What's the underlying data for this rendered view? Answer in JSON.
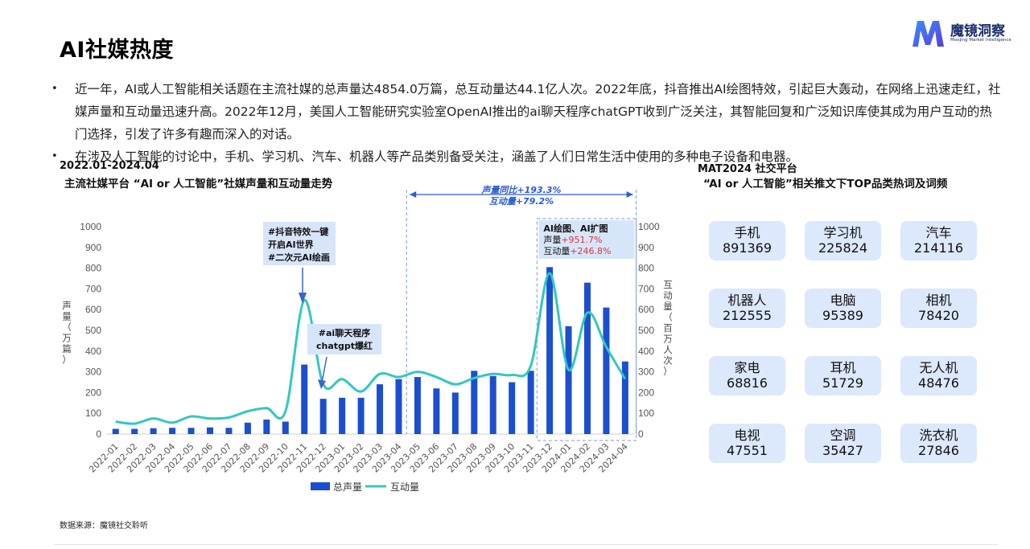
{
  "page": {
    "title": "AI社媒热度",
    "logo_name": "魔镜洞察",
    "logo_sub": "Moojing Market Intelligence",
    "bullets": [
      "近一年，AI或人工智能相关话题在主流社媒的总声量达4854.0万篇，总互动量达44.1亿人次。2022年底，抖音推出AI绘图特效，引起巨大轰动，在网络上迅速走红，社媒声量和互动量迅速升高。2022年12月，美国人工智能研究实验室OpenAI推出的ai聊天程序chatGPT收到广泛关注，其智能回复和广泛知识库使其成为用户互动的热门选择，引发了许多有趣而深入的对话。",
      "在涉及人工智能的讨论中，手机、学习机、汽车、机器人等产品类别备受关注，涵盖了人们日常生活中使用的多种电子设备和电器。"
    ],
    "left_date": "2022.01-2024.04",
    "left_title": "主流社媒平台 “AI or 人工智能”社媒声量和互动量走势",
    "right_date": "MAT2024 社交平台",
    "right_title": "“AI or 人工智能”相关推文下TOP品类热词及词频",
    "source": "数据来源：魔镜社交聆听",
    "bullet_symbol": "•",
    "colors": {
      "bar": "#1b4fd0",
      "line": "#33c7bf",
      "card": "#dce8fb",
      "accent": "#2a5bd7",
      "red": "#e03535"
    }
  },
  "chart_data": {
    "type": "bar",
    "categories": [
      "2022-01",
      "2022-02",
      "2022-03",
      "2022-04",
      "2022-05",
      "2022-06",
      "2022-07",
      "2022-08",
      "2022-09",
      "2022-10",
      "2022-11",
      "2022-12",
      "2023-01",
      "2023-02",
      "2023-03",
      "2023-04",
      "2023-05",
      "2023-06",
      "2023-07",
      "2023-08",
      "2023-09",
      "2023-10",
      "2023-11",
      "2023-12",
      "2024-01",
      "2024-02",
      "2024-03",
      "2024-04"
    ],
    "series": [
      {
        "name": "总声量",
        "type": "bar",
        "axis": "left",
        "values": [
          25,
          25,
          28,
          30,
          30,
          32,
          30,
          55,
          70,
          60,
          335,
          170,
          175,
          175,
          240,
          265,
          275,
          220,
          200,
          305,
          280,
          250,
          305,
          805,
          520,
          730,
          610,
          350
        ]
      },
      {
        "name": "互动量",
        "type": "line",
        "axis": "right",
        "values": [
          60,
          50,
          75,
          55,
          85,
          75,
          80,
          110,
          125,
          110,
          645,
          240,
          265,
          205,
          290,
          275,
          300,
          275,
          240,
          270,
          290,
          285,
          330,
          775,
          310,
          585,
          420,
          265
        ]
      }
    ],
    "ylabel_left": "声量（万篇）",
    "ylabel_right": "互动量（百万人次）",
    "y_left_ticks": [
      "0",
      "100",
      "200",
      "300",
      "400",
      "500",
      "600",
      "700",
      "800",
      "900",
      "1000"
    ],
    "y_right_ticks": [
      "0",
      "100",
      "200",
      "300",
      "400",
      "500",
      "600",
      "700",
      "800",
      "900",
      "1000"
    ],
    "ylim": [
      0,
      1000
    ],
    "legend_position": "bottom",
    "annotations": {
      "douyin": [
        "#抖音特效一键",
        "开启AI世界",
        "#二次元AI绘画"
      ],
      "chatgpt": [
        "#ai聊天程序",
        "chatgpt爆红"
      ],
      "period_volume": "声量同比+193.3%",
      "period_interaction": "互动量+79.2%",
      "aibox_title": "AI绘图、AI扩图",
      "aibox_volume_label": "声量",
      "aibox_volume_value": "+951.7%",
      "aibox_interaction_label": "互动量",
      "aibox_interaction_value": "+246.8%"
    }
  },
  "keywords": [
    {
      "word": "手机",
      "count": "891369"
    },
    {
      "word": "学习机",
      "count": "225824"
    },
    {
      "word": "汽车",
      "count": "214116"
    },
    {
      "word": "机器人",
      "count": "212555"
    },
    {
      "word": "电脑",
      "count": "95389"
    },
    {
      "word": "相机",
      "count": "78420"
    },
    {
      "word": "家电",
      "count": "68816"
    },
    {
      "word": "耳机",
      "count": "51729"
    },
    {
      "word": "无人机",
      "count": "48476"
    },
    {
      "word": "电视",
      "count": "47551"
    },
    {
      "word": "空调",
      "count": "35427"
    },
    {
      "word": "洗衣机",
      "count": "27846"
    }
  ]
}
